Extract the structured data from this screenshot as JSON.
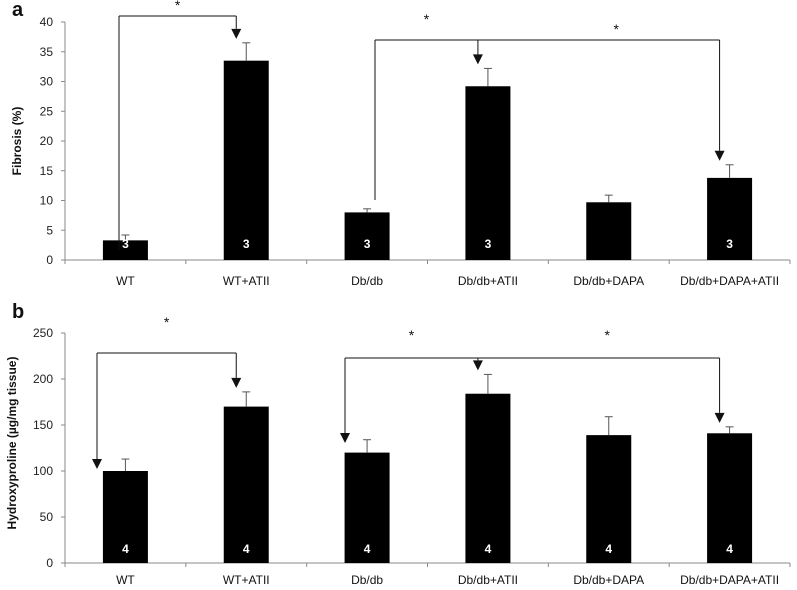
{
  "chart_data": [
    {
      "type": "bar",
      "panel_label": "a",
      "ylabel": "Fibrosis (%)",
      "ylim": [
        0,
        40
      ],
      "yticks": [
        0,
        5,
        10,
        15,
        20,
        25,
        30,
        35,
        40
      ],
      "categories": [
        "WT",
        "WT+ATII",
        "Db/db",
        "Db/db+ATII",
        "Db/db+DAPA",
        "Db/db+DAPA+ATII"
      ],
      "values": [
        3.3,
        33.5,
        8.0,
        29.2,
        9.7,
        13.8
      ],
      "errors": [
        0.9,
        3.0,
        0.6,
        3.0,
        1.2,
        2.2
      ],
      "n_labels": [
        "3",
        "3",
        "3",
        "3",
        "",
        "3"
      ],
      "bar_color": "#000000",
      "grid": false,
      "significance": [
        {
          "from": 0,
          "to": 1,
          "label": "*"
        },
        {
          "from": 2,
          "to": 3,
          "label": "*"
        },
        {
          "from": 2,
          "to": 5,
          "label": "*"
        }
      ]
    },
    {
      "type": "bar",
      "panel_label": "b",
      "ylabel": "Hydroxyproline (µg/mg tissue)",
      "ylim": [
        0,
        250
      ],
      "yticks": [
        0,
        50,
        100,
        150,
        200,
        250
      ],
      "categories": [
        "WT",
        "WT+ATII",
        "Db/db",
        "Db/db+ATII",
        "Db/db+DAPA",
        "Db/db+DAPA+ATII"
      ],
      "values": [
        100,
        170,
        120,
        184,
        139,
        141
      ],
      "errors": [
        13,
        16,
        14,
        21,
        20,
        7
      ],
      "n_labels": [
        "4",
        "4",
        "4",
        "4",
        "4",
        "4"
      ],
      "bar_color": "#000000",
      "grid": false,
      "significance": [
        {
          "from": 0,
          "to": 1,
          "label": "*"
        },
        {
          "from": 2,
          "to": 3,
          "label": "*"
        },
        {
          "from": 2,
          "to": 5,
          "label": "*"
        }
      ]
    }
  ]
}
